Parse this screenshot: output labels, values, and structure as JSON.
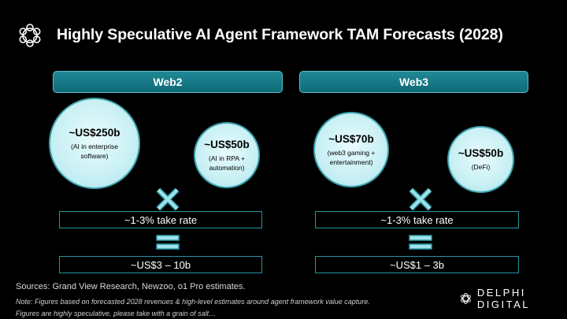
{
  "title": "Highly Speculative AI Agent Framework TAM Forecasts (2028)",
  "colors": {
    "accent": "#1a7f8c",
    "circle_fill": "#d3f4f7",
    "border": "#2a93a0"
  },
  "columns": [
    {
      "header": "Web2",
      "circles": [
        {
          "amount": "~US$250b",
          "desc1": "(AI in enterprise",
          "desc2": "software)"
        },
        {
          "amount": "~US$50b",
          "desc1": "(AI in RPA +",
          "desc2": "automation)"
        }
      ],
      "take_rate": "~1-3% take rate",
      "result": "~US$3 – 10b"
    },
    {
      "header": "Web3",
      "circles": [
        {
          "amount": "~US$70b",
          "desc1": "(web3 gaming +",
          "desc2": "entertainment)"
        },
        {
          "amount": "~US$50b",
          "desc1": "(DeFi)",
          "desc2": ""
        }
      ],
      "take_rate": "~1-3% take rate",
      "result": "~US$1 – 3b"
    }
  ],
  "footer": {
    "sources": "Sources: Grand View Research, Newzoo, o1 Pro estimates.",
    "note1": "Note: Figures based on forecasted 2028 revenues & high-level estimates around agent framework value capture.",
    "note2": "Figures are highly speculative, please take with a grain of salt…",
    "brand": "DELPHI DIGITAL"
  },
  "icons": [
    "delphi-logo-icon",
    "multiply-icon",
    "equals-icon"
  ]
}
